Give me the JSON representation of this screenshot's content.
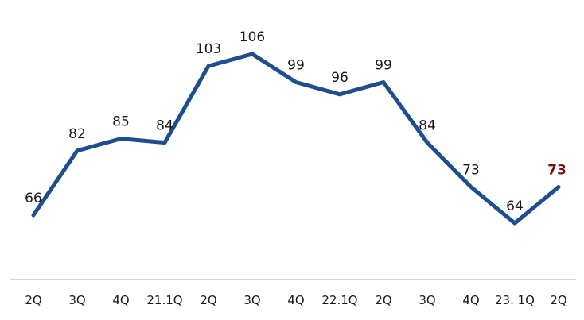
{
  "chart_data": {
    "type": "line",
    "categories": [
      "2Q",
      "3Q",
      "4Q",
      "21.1Q",
      "2Q",
      "3Q",
      "4Q",
      "22.1Q",
      "2Q",
      "3Q",
      "4Q",
      "23. 1Q",
      "2Q"
    ],
    "series": [
      {
        "values": [
          66,
          82,
          85,
          84,
          103,
          106,
          99,
          96,
          99,
          84,
          73,
          64,
          73
        ]
      }
    ],
    "highlight_index": 12,
    "line_color": "#1f4e8c",
    "highlight_label_color": "#7a0e0e",
    "axis_color": "#c8c8c8",
    "ylim": [
      40,
      115
    ],
    "grid": false,
    "legend": "none",
    "title": "",
    "xlabel": "",
    "ylabel": ""
  }
}
